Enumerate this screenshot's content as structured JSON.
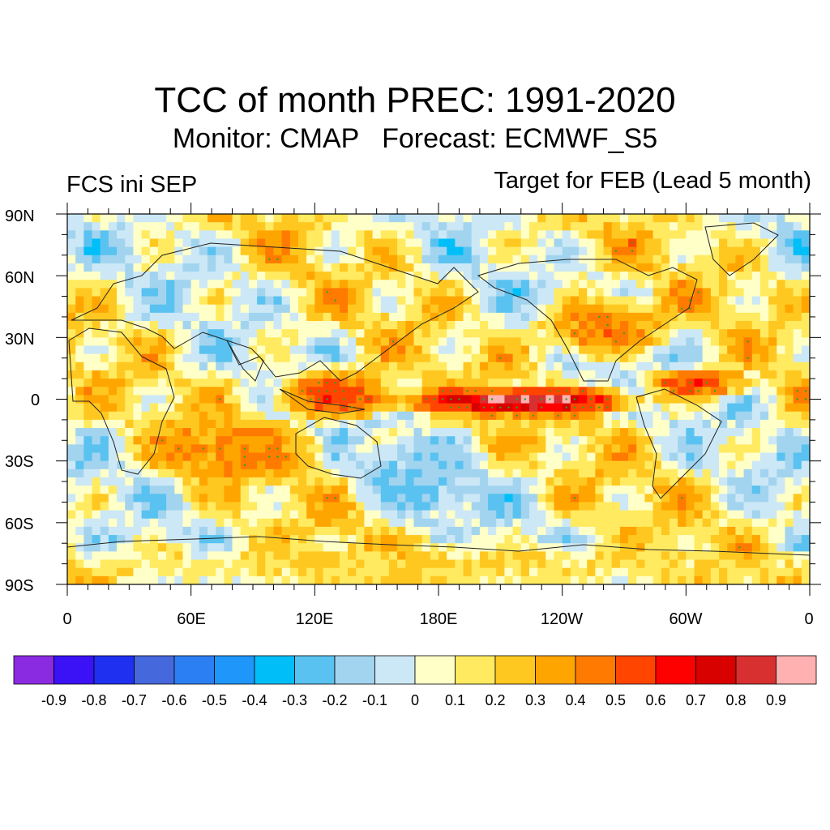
{
  "title": "TCC of month PREC: 1991-2020",
  "subtitle": "Monitor: CMAP   Forecast: ECMWF_S5",
  "left_string": "FCS ini SEP",
  "right_string": "Target for FEB (Lead 5 month)",
  "lat_labels": [
    "90N",
    "60N",
    "30N",
    "0",
    "30S",
    "60S",
    "90S"
  ],
  "lon_labels": [
    "0",
    "60E",
    "120E",
    "180E",
    "120W",
    "60W",
    "0"
  ],
  "colorbar": {
    "labels": [
      "-0.9",
      "-0.8",
      "-0.7",
      "-0.6",
      "-0.5",
      "-0.4",
      "-0.3",
      "-0.2",
      "-0.1",
      "0",
      "0.1",
      "0.2",
      "0.3",
      "0.4",
      "0.5",
      "0.6",
      "0.7",
      "0.8",
      "0.9"
    ],
    "colors": [
      "#8a2be2",
      "#3a12f5",
      "#2030f0",
      "#4568dd",
      "#2c7ff2",
      "#1e96fa",
      "#00bff8",
      "#5ac2f0",
      "#a2d4ef",
      "#cce8f6",
      "#ffffc8",
      "#ffea60",
      "#ffc820",
      "#ffa500",
      "#ff7a00",
      "#ff4500",
      "#ff0000",
      "#d90000",
      "#d83030",
      "#ffb0b0"
    ]
  },
  "map_data": {
    "type": "global correlation map",
    "projection": "cylindrical equidistant",
    "lon_range": [
      0,
      360
    ],
    "lat_range": [
      -90,
      90
    ],
    "significance": "green dots (positive), purple dots (negative)",
    "features": [
      {
        "lon0": 160,
        "lon1": 280,
        "lat0": -8,
        "lat1": 6,
        "value": 0.75
      },
      {
        "lon0": 200,
        "lon1": 245,
        "lat0": -4,
        "lat1": 2,
        "value": 0.95
      },
      {
        "lon0": 100,
        "lon1": 160,
        "lat0": -10,
        "lat1": 15,
        "value": 0.55
      },
      {
        "lon0": 280,
        "lon1": 330,
        "lat0": 0,
        "lat1": 15,
        "value": 0.55
      },
      {
        "lon0": 230,
        "lon1": 290,
        "lat0": 20,
        "lat1": 50,
        "value": 0.45
      },
      {
        "lon0": 40,
        "lon1": 120,
        "lat0": -40,
        "lat1": -10,
        "value": 0.4
      },
      {
        "lon0": 0,
        "lon1": 360,
        "lat0": -90,
        "lat1": -70,
        "value": 0.2
      },
      {
        "lon0": 140,
        "lon1": 200,
        "lat0": -60,
        "lat1": -20,
        "value": -0.2
      }
    ]
  }
}
